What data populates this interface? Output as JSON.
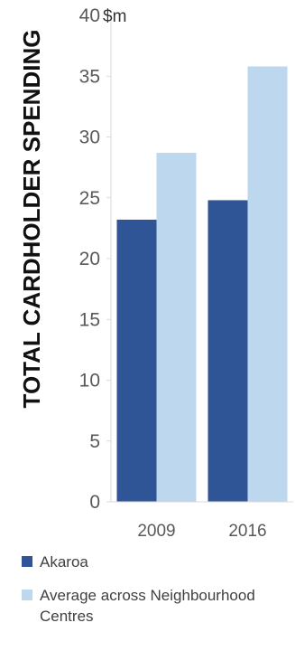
{
  "chart_data": {
    "type": "bar",
    "title": "",
    "ylabel": "TOTAL CARDHOLDER SPENDING",
    "unit_label": "$m",
    "xlabel": "",
    "categories": [
      "2009",
      "2016"
    ],
    "series": [
      {
        "name": "Akaroa",
        "values": [
          23.2,
          24.8
        ],
        "color": "#2F5597"
      },
      {
        "name": "Average across Neighbourhood Centres",
        "values": [
          28.7,
          35.8
        ],
        "color": "#BDD7EE"
      }
    ],
    "ylim": [
      0,
      40
    ],
    "yticks": [
      0,
      5,
      10,
      15,
      20,
      25,
      30,
      35,
      40
    ],
    "grid": false,
    "legend_position": "bottom"
  }
}
